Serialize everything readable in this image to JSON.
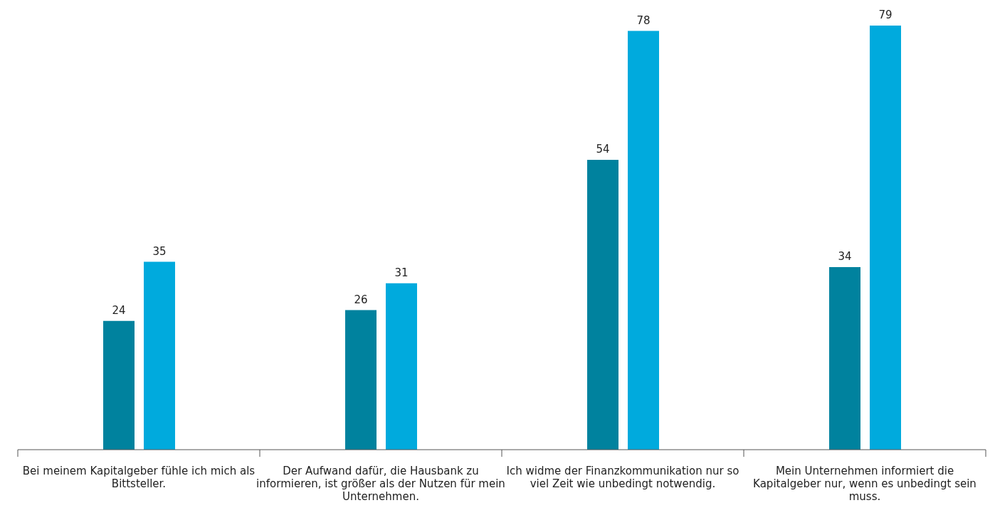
{
  "chart_data": {
    "type": "bar",
    "categories": [
      "Bei meinem Kapitalgeber fühle ich mich als Bittsteller.",
      "Der Aufwand dafür, die Hausbank zu informieren, ist größer als der Nutzen für mein Unternehmen.",
      "Ich widme der Finanzkommunikation nur so viel Zeit wie unbedingt notwendig.",
      "Mein Unternehmen informiert die Kapitalgeber nur, wenn es unbedingt sein muss."
    ],
    "series": [
      {
        "color": "#00829e",
        "values": [
          24,
          26,
          54,
          34
        ]
      },
      {
        "color": "#00aadd",
        "values": [
          35,
          31,
          78,
          79
        ]
      }
    ],
    "data_labels": true
  }
}
